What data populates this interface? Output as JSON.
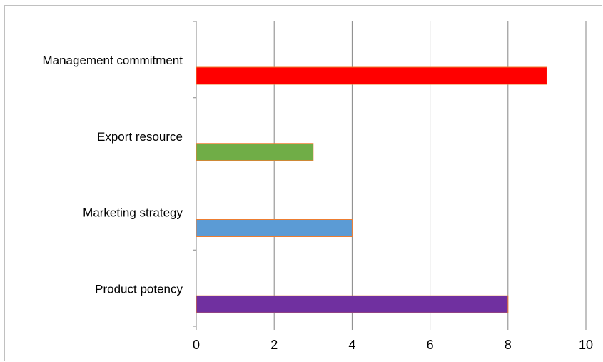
{
  "chart_data": {
    "type": "bar",
    "orientation": "horizontal",
    "categories": [
      "Management commitment",
      "Export resource",
      "Marketing strategy",
      "Product potency"
    ],
    "values": [
      9,
      3,
      4,
      8
    ],
    "colors": [
      "#ff0000",
      "#70ad47",
      "#5b9bd5",
      "#7030a0"
    ],
    "bar_outline_color": "#ed7d31",
    "xlim": [
      0,
      10
    ],
    "x_ticks": [
      "0",
      "2",
      "4",
      "6",
      "8",
      "10"
    ],
    "grid": true,
    "legend": "none",
    "title": "",
    "xlabel": "",
    "ylabel": ""
  }
}
